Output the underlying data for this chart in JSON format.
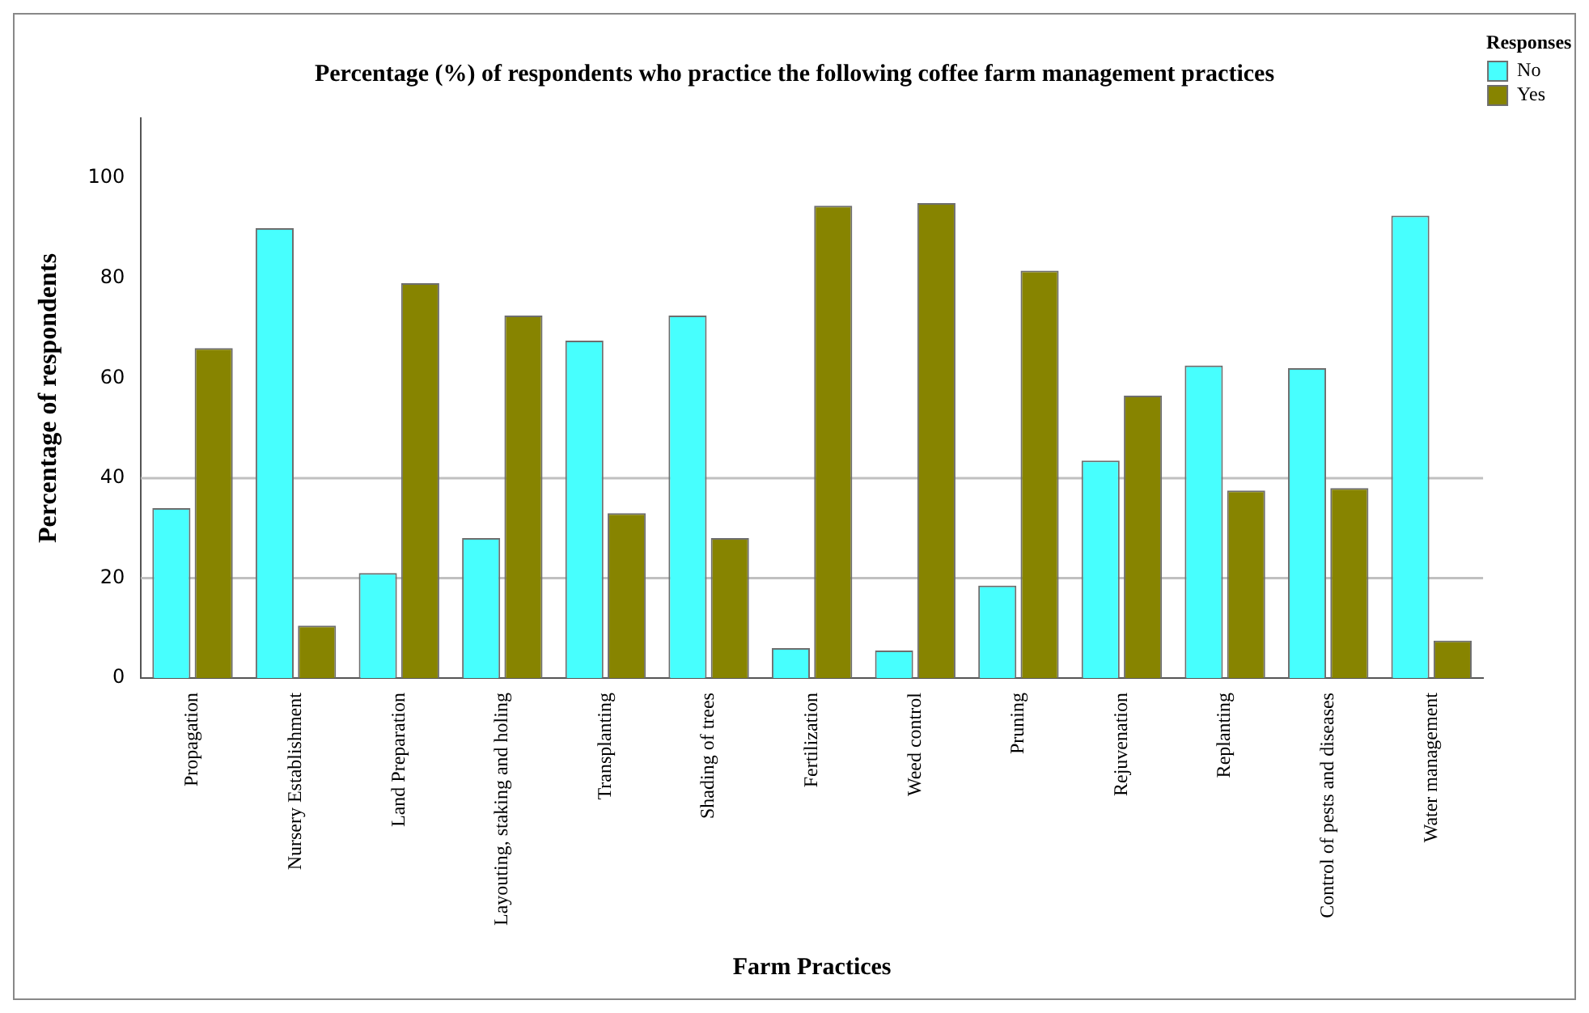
{
  "chart_data": {
    "type": "bar",
    "title": "Percentage (%) of respondents who practice the following coffee farm management practices",
    "xlabel": "Farm Practices",
    "ylabel": "Percentage of respondents",
    "legend_title": "Responses",
    "categories": [
      "Propagation",
      "Nursery Establishment",
      "Land Preparation",
      "Layouting, staking and holing",
      "Transplanting",
      "Shading of trees",
      "Fertilization",
      "Weed control",
      "Pruning",
      "Rejuvenation",
      "Replanting",
      "Control of pests and diseases",
      "Water management"
    ],
    "series": [
      {
        "name": "No",
        "color": "#47fffe",
        "values": [
          34,
          90,
          21,
          28,
          67.5,
          72.5,
          6,
          5.5,
          18.5,
          43.5,
          62.5,
          62,
          92.5
        ]
      },
      {
        "name": "Yes",
        "color": "#878400",
        "values": [
          66,
          10.5,
          79,
          72.5,
          33,
          28,
          94.5,
          95,
          81.5,
          56.5,
          37.5,
          38,
          7.5
        ]
      }
    ],
    "ylim": [
      0,
      112
    ],
    "yticks": [
      0,
      20,
      40,
      60,
      80,
      100
    ],
    "grid": false,
    "legend": "top right",
    "ref_lines": [
      {
        "axis": "y",
        "value": 20,
        "color": "#c0c0c0"
      },
      {
        "axis": "y",
        "value": 40,
        "color": "#c0c0c0"
      }
    ]
  }
}
